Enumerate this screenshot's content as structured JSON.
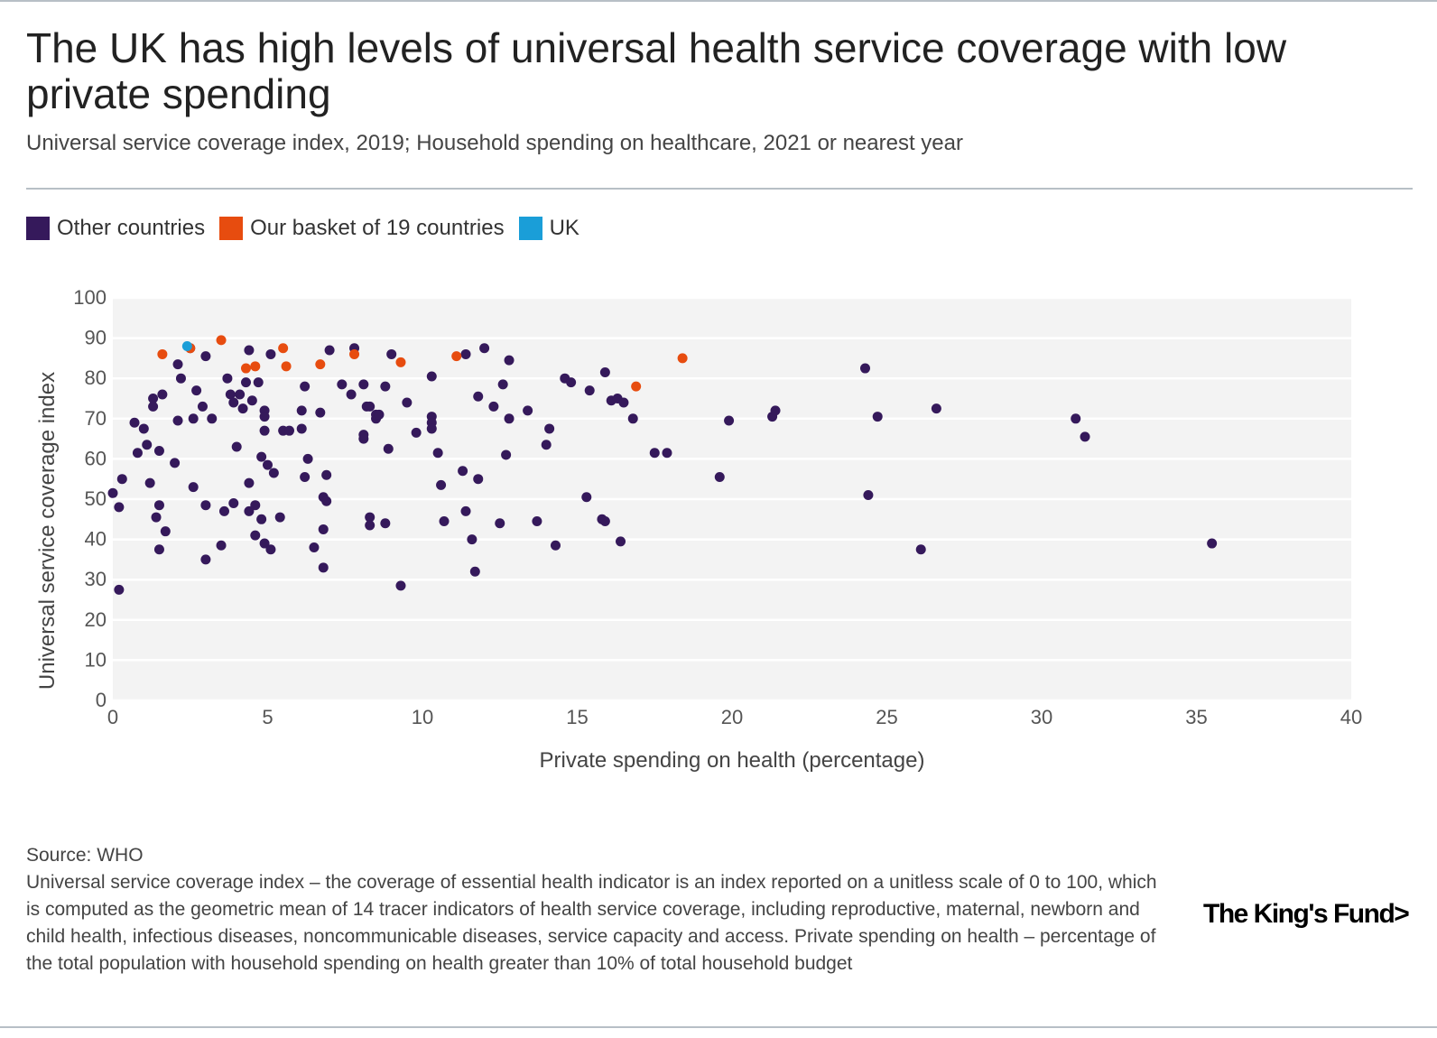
{
  "header": {
    "title": "The UK has high levels of universal health service coverage with low private spending",
    "subtitle": "Universal service coverage index, 2019; Household spending on healthcare, 2021 or nearest year"
  },
  "legend": {
    "items": [
      {
        "label": "Other countries",
        "color": "#35195b"
      },
      {
        "label": "Our basket of 19 countries",
        "color": "#e74c0f"
      },
      {
        "label": "UK",
        "color": "#1a9ed8"
      }
    ]
  },
  "chart_data": {
    "type": "scatter",
    "title": "The UK has high levels of universal health service coverage with low private spending",
    "subtitle": "Universal service coverage index, 2019; Household spending on healthcare, 2021 or nearest year",
    "xlabel": "Private spending on health (percentage)",
    "ylabel": "Universal service coverage index",
    "xlim": [
      0,
      40
    ],
    "ylim": [
      0,
      100
    ],
    "xticks": [
      0,
      5,
      10,
      15,
      20,
      25,
      30,
      35,
      40
    ],
    "yticks": [
      0,
      10,
      20,
      30,
      40,
      50,
      60,
      70,
      80,
      90,
      100
    ],
    "grid": true,
    "legend_position": "top-left",
    "series": [
      {
        "name": "Other countries",
        "color": "#35195b",
        "points": [
          [
            0,
            51.5
          ],
          [
            0.2,
            27.5
          ],
          [
            0.2,
            48
          ],
          [
            0.3,
            55
          ],
          [
            0.7,
            69
          ],
          [
            0.8,
            61.5
          ],
          [
            1,
            67.5
          ],
          [
            1.1,
            63.5
          ],
          [
            1.2,
            54
          ],
          [
            1.3,
            75
          ],
          [
            1.3,
            73
          ],
          [
            1.4,
            45.5
          ],
          [
            1.5,
            48.5
          ],
          [
            1.5,
            37.5
          ],
          [
            1.5,
            62
          ],
          [
            1.6,
            76
          ],
          [
            1.7,
            42
          ],
          [
            2,
            59
          ],
          [
            2.1,
            83.5
          ],
          [
            2.1,
            69.5
          ],
          [
            2.2,
            80
          ],
          [
            2.5,
            87.5
          ],
          [
            2.6,
            70
          ],
          [
            2.6,
            53
          ],
          [
            2.7,
            77
          ],
          [
            2.9,
            73
          ],
          [
            3,
            35
          ],
          [
            3,
            48.5
          ],
          [
            3,
            85.5
          ],
          [
            3.2,
            70
          ],
          [
            3.5,
            38.5
          ],
          [
            3.6,
            47
          ],
          [
            3.7,
            80
          ],
          [
            3.8,
            76
          ],
          [
            3.9,
            49
          ],
          [
            3.9,
            74
          ],
          [
            4,
            63
          ],
          [
            4.1,
            76
          ],
          [
            4.2,
            72.5
          ],
          [
            4.3,
            79
          ],
          [
            4.4,
            47
          ],
          [
            4.4,
            54
          ],
          [
            4.4,
            87
          ],
          [
            4.5,
            74.5
          ],
          [
            4.6,
            48.5
          ],
          [
            4.6,
            41
          ],
          [
            4.7,
            79
          ],
          [
            4.8,
            45
          ],
          [
            4.8,
            60.5
          ],
          [
            4.9,
            72
          ],
          [
            4.9,
            39
          ],
          [
            4.9,
            70.5
          ],
          [
            4.9,
            67
          ],
          [
            5,
            58.5
          ],
          [
            5.1,
            37.5
          ],
          [
            5.1,
            86
          ],
          [
            5.2,
            56.5
          ],
          [
            5.4,
            45.5
          ],
          [
            5.5,
            67
          ],
          [
            5.7,
            67
          ],
          [
            6.1,
            72
          ],
          [
            6.1,
            67.5
          ],
          [
            6.2,
            78
          ],
          [
            6.2,
            55.5
          ],
          [
            6.3,
            60
          ],
          [
            6.5,
            38
          ],
          [
            6.7,
            71.5
          ],
          [
            6.8,
            33
          ],
          [
            6.8,
            42.5
          ],
          [
            6.8,
            50.5
          ],
          [
            6.9,
            49.5
          ],
          [
            6.9,
            56
          ],
          [
            7,
            87
          ],
          [
            7.4,
            78.5
          ],
          [
            7.7,
            76
          ],
          [
            7.8,
            87.5
          ],
          [
            8.1,
            78.5
          ],
          [
            8.1,
            65
          ],
          [
            8.1,
            66
          ],
          [
            8.2,
            73
          ],
          [
            8.3,
            73
          ],
          [
            8.3,
            45.5
          ],
          [
            8.3,
            43.5
          ],
          [
            8.5,
            70
          ],
          [
            8.5,
            71
          ],
          [
            8.6,
            71
          ],
          [
            8.8,
            44
          ],
          [
            8.8,
            78
          ],
          [
            8.9,
            62.5
          ],
          [
            9,
            86
          ],
          [
            9.3,
            28.5
          ],
          [
            9.5,
            74
          ],
          [
            9.8,
            66.5
          ],
          [
            10.3,
            70.5
          ],
          [
            10.3,
            69
          ],
          [
            10.3,
            67.5
          ],
          [
            10.3,
            80.5
          ],
          [
            10.5,
            61.5
          ],
          [
            10.6,
            53.5
          ],
          [
            10.7,
            44.5
          ],
          [
            11.3,
            57
          ],
          [
            11.4,
            47
          ],
          [
            11.4,
            86
          ],
          [
            11.6,
            40
          ],
          [
            11.7,
            32
          ],
          [
            11.8,
            55
          ],
          [
            11.8,
            75.5
          ],
          [
            12,
            87.5
          ],
          [
            12.3,
            73
          ],
          [
            12.5,
            44
          ],
          [
            12.6,
            78.5
          ],
          [
            12.7,
            61
          ],
          [
            12.8,
            84.5
          ],
          [
            12.8,
            70
          ],
          [
            13.4,
            72
          ],
          [
            13.7,
            44.5
          ],
          [
            14,
            63.5
          ],
          [
            14.1,
            67.5
          ],
          [
            14.3,
            38.5
          ],
          [
            14.6,
            80
          ],
          [
            14.8,
            79
          ],
          [
            15.3,
            50.5
          ],
          [
            15.4,
            77
          ],
          [
            15.8,
            45
          ],
          [
            15.9,
            44.5
          ],
          [
            15.9,
            81.5
          ],
          [
            16.1,
            74.5
          ],
          [
            16.3,
            75
          ],
          [
            16.4,
            39.5
          ],
          [
            16.5,
            74
          ],
          [
            16.8,
            70
          ],
          [
            17.5,
            61.5
          ],
          [
            17.9,
            61.5
          ],
          [
            19.6,
            55.5
          ],
          [
            19.9,
            69.5
          ],
          [
            21.3,
            70.5
          ],
          [
            21.4,
            72
          ],
          [
            24.3,
            82.5
          ],
          [
            24.4,
            51
          ],
          [
            24.7,
            70.5
          ],
          [
            26.1,
            37.5
          ],
          [
            26.6,
            72.5
          ],
          [
            31.1,
            70
          ],
          [
            31.4,
            65.5
          ],
          [
            35.5,
            39
          ]
        ]
      },
      {
        "name": "Our basket of 19 countries",
        "color": "#e74c0f",
        "points": [
          [
            1.6,
            86
          ],
          [
            2.5,
            87.5
          ],
          [
            3.5,
            89.5
          ],
          [
            4.3,
            82.5
          ],
          [
            4.6,
            83
          ],
          [
            5.5,
            87.5
          ],
          [
            5.6,
            83
          ],
          [
            6.7,
            83.5
          ],
          [
            7.8,
            86
          ],
          [
            9.3,
            84
          ],
          [
            11.1,
            85.5
          ],
          [
            16.9,
            78
          ],
          [
            18.4,
            85
          ]
        ]
      },
      {
        "name": "UK",
        "color": "#1a9ed8",
        "points": [
          [
            2.4,
            88
          ]
        ]
      }
    ]
  },
  "footer": {
    "source": "Source: WHO",
    "notes": "Universal service coverage index – the coverage of essential health indicator is an index reported on a unitless scale of 0 to 100, which is computed as the geometric mean of 14 tracer indicators of health service coverage, including reproductive, maternal, newborn and child health, infectious diseases, noncommunicable diseases, service capacity and access. Private spending on health – percentage of the total population with household spending on health greater than 10% of total household budget"
  },
  "branding": {
    "logo_text": "The King's Fund>"
  }
}
